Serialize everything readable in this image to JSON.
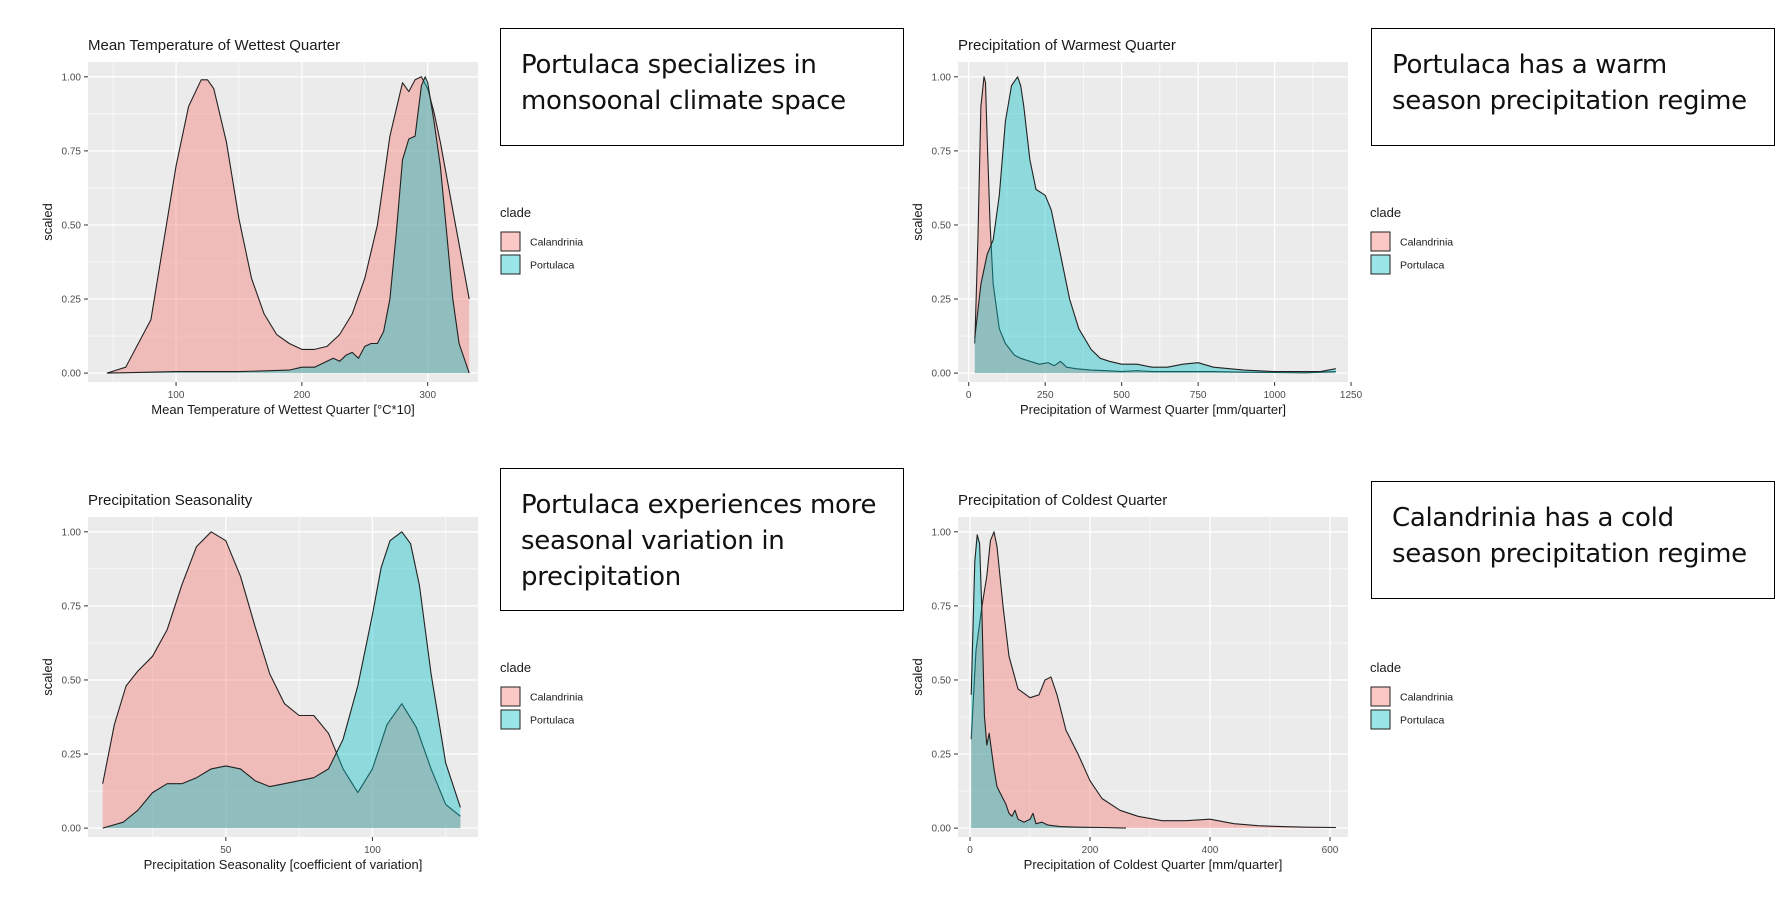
{
  "colors": {
    "calandrinia": "#f8766d",
    "portulaca": "#00bfc4",
    "panel_bg": "#ebebeb",
    "grid": "#ffffff"
  },
  "notes": [
    "Portulaca specializes in monsoonal climate space",
    "Portulaca has a warm season precipitation regime",
    "Portulaca experiences more seasonal variation in precipitation",
    "Calandrinia has a cold season precipitation regime"
  ],
  "chart_data": [
    {
      "type": "area",
      "title": "Mean Temperature of Wettest Quarter",
      "xlabel": "Mean Temperature of Wettest Quarter [°C*10]",
      "ylabel": "scaled",
      "xlim": [
        30,
        340
      ],
      "ylim": [
        -0.03,
        1.05
      ],
      "xticks": [
        100,
        200,
        300
      ],
      "yticks": [
        0,
        0.25,
        0.5,
        0.75,
        1.0
      ],
      "ytick_labels": [
        "0.00",
        "0.25",
        "0.50",
        "0.75",
        "1.00"
      ],
      "legend": {
        "title": "clade",
        "position": "right",
        "entries": [
          "Calandrinia",
          "Portulaca"
        ]
      },
      "series": [
        {
          "name": "Calandrinia",
          "x": [
            45,
            60,
            80,
            100,
            110,
            120,
            125,
            130,
            140,
            150,
            160,
            170,
            180,
            190,
            200,
            210,
            220,
            230,
            240,
            250,
            260,
            270,
            280,
            285,
            290,
            295,
            300,
            305,
            310,
            320,
            333
          ],
          "y": [
            0.0,
            0.02,
            0.18,
            0.7,
            0.9,
            0.99,
            0.99,
            0.96,
            0.78,
            0.52,
            0.32,
            0.2,
            0.13,
            0.1,
            0.08,
            0.08,
            0.09,
            0.13,
            0.2,
            0.32,
            0.5,
            0.8,
            0.98,
            0.95,
            0.99,
            1.0,
            0.96,
            0.88,
            0.78,
            0.55,
            0.25
          ]
        },
        {
          "name": "Portulaca",
          "x": [
            45,
            100,
            150,
            190,
            200,
            210,
            220,
            225,
            230,
            235,
            240,
            245,
            250,
            255,
            260,
            265,
            270,
            275,
            280,
            285,
            290,
            295,
            298,
            300,
            305,
            310,
            315,
            320,
            325,
            333
          ],
          "y": [
            0.0,
            0.005,
            0.005,
            0.01,
            0.02,
            0.02,
            0.04,
            0.05,
            0.04,
            0.06,
            0.07,
            0.05,
            0.09,
            0.1,
            0.1,
            0.14,
            0.25,
            0.47,
            0.72,
            0.79,
            0.8,
            0.97,
            1.0,
            0.98,
            0.85,
            0.7,
            0.48,
            0.25,
            0.1,
            0.0
          ]
        }
      ]
    },
    {
      "type": "area",
      "title": "Precipitation of Warmest Quarter",
      "xlabel": "Precipitation of Warmest Quarter [mm/quarter]",
      "ylabel": "scaled",
      "xlim": [
        -35,
        1240
      ],
      "ylim": [
        -0.03,
        1.05
      ],
      "xticks": [
        0,
        250,
        500,
        750,
        1000,
        1250
      ],
      "yticks": [
        0,
        0.25,
        0.5,
        0.75,
        1.0
      ],
      "ytick_labels": [
        "0.00",
        "0.25",
        "0.50",
        "0.75",
        "1.00"
      ],
      "legend": {
        "title": "clade",
        "position": "right",
        "entries": [
          "Calandrinia",
          "Portulaca"
        ]
      },
      "series": [
        {
          "name": "Calandrinia",
          "x": [
            20,
            30,
            40,
            50,
            55,
            60,
            70,
            80,
            100,
            120,
            150,
            170,
            200,
            230,
            260,
            280,
            300,
            320,
            350,
            400,
            450,
            500,
            550,
            600,
            650,
            700,
            750,
            800,
            900,
            1000,
            1100,
            1200
          ],
          "y": [
            0.1,
            0.45,
            0.9,
            1.0,
            0.98,
            0.8,
            0.5,
            0.3,
            0.15,
            0.1,
            0.06,
            0.05,
            0.04,
            0.03,
            0.035,
            0.025,
            0.04,
            0.02,
            0.015,
            0.01,
            0.008,
            0.005,
            0.008,
            0.005,
            0.005,
            0.005,
            0.005,
            0.005,
            0.003,
            0.002,
            0.001,
            0.005
          ]
        },
        {
          "name": "Portulaca",
          "x": [
            20,
            40,
            60,
            80,
            100,
            120,
            140,
            160,
            170,
            180,
            200,
            220,
            250,
            270,
            300,
            330,
            360,
            400,
            430,
            460,
            500,
            550,
            600,
            650,
            700,
            750,
            800,
            900,
            1000,
            1100,
            1150,
            1200
          ],
          "y": [
            0.12,
            0.3,
            0.4,
            0.45,
            0.6,
            0.85,
            0.97,
            1.0,
            0.97,
            0.9,
            0.72,
            0.62,
            0.6,
            0.55,
            0.4,
            0.25,
            0.15,
            0.08,
            0.05,
            0.04,
            0.03,
            0.03,
            0.02,
            0.02,
            0.03,
            0.035,
            0.02,
            0.01,
            0.005,
            0.005,
            0.005,
            0.015
          ]
        }
      ]
    },
    {
      "type": "area",
      "title": "Precipitation Seasonality",
      "xlabel": "Precipitation Seasonality [coefficient of variation]",
      "ylabel": "scaled",
      "xlim": [
        3,
        136
      ],
      "ylim": [
        -0.03,
        1.05
      ],
      "xticks": [
        50,
        100
      ],
      "yticks": [
        0,
        0.25,
        0.5,
        0.75,
        1.0
      ],
      "ytick_labels": [
        "0.00",
        "0.25",
        "0.50",
        "0.75",
        "1.00"
      ],
      "legend": {
        "title": "clade",
        "position": "right",
        "entries": [
          "Calandrinia",
          "Portulaca"
        ]
      },
      "series": [
        {
          "name": "Calandrinia",
          "x": [
            8,
            12,
            16,
            20,
            25,
            30,
            35,
            40,
            45,
            50,
            55,
            60,
            65,
            70,
            75,
            80,
            85,
            90,
            95,
            100,
            105,
            110,
            115,
            120,
            125,
            130
          ],
          "y": [
            0.15,
            0.35,
            0.48,
            0.53,
            0.58,
            0.67,
            0.82,
            0.95,
            1.0,
            0.97,
            0.85,
            0.68,
            0.52,
            0.42,
            0.38,
            0.38,
            0.32,
            0.2,
            0.12,
            0.2,
            0.35,
            0.42,
            0.34,
            0.2,
            0.08,
            0.04
          ]
        },
        {
          "name": "Portulaca",
          "x": [
            8,
            15,
            20,
            25,
            30,
            35,
            40,
            45,
            50,
            55,
            60,
            65,
            70,
            75,
            80,
            85,
            90,
            95,
            100,
            103,
            106,
            110,
            113,
            116,
            120,
            125,
            130
          ],
          "y": [
            0.0,
            0.02,
            0.06,
            0.12,
            0.15,
            0.15,
            0.17,
            0.2,
            0.21,
            0.2,
            0.16,
            0.14,
            0.15,
            0.16,
            0.17,
            0.2,
            0.3,
            0.48,
            0.72,
            0.88,
            0.97,
            1.0,
            0.96,
            0.82,
            0.52,
            0.22,
            0.07
          ]
        }
      ]
    },
    {
      "type": "area",
      "title": "Precipitation of Coldest Quarter",
      "xlabel": "Precipitation of Coldest Quarter [mm/quarter]",
      "ylabel": "scaled",
      "xlim": [
        -20,
        630
      ],
      "ylim": [
        -0.03,
        1.05
      ],
      "xticks": [
        0,
        200,
        400,
        600
      ],
      "yticks": [
        0,
        0.25,
        0.5,
        0.75,
        1.0
      ],
      "ytick_labels": [
        "0.00",
        "0.25",
        "0.50",
        "0.75",
        "1.00"
      ],
      "legend": {
        "title": "clade",
        "position": "right",
        "entries": [
          "Calandrinia",
          "Portulaca"
        ]
      },
      "series": [
        {
          "name": "Calandrinia",
          "x": [
            2,
            10,
            20,
            28,
            34,
            40,
            45,
            55,
            65,
            80,
            100,
            115,
            125,
            135,
            145,
            160,
            180,
            200,
            220,
            250,
            280,
            320,
            360,
            400,
            440,
            480,
            520,
            560,
            610
          ],
          "y": [
            0.3,
            0.6,
            0.75,
            0.85,
            0.97,
            1.0,
            0.95,
            0.75,
            0.58,
            0.47,
            0.44,
            0.45,
            0.5,
            0.51,
            0.45,
            0.33,
            0.25,
            0.16,
            0.1,
            0.06,
            0.04,
            0.025,
            0.025,
            0.03,
            0.015,
            0.008,
            0.005,
            0.003,
            0.002
          ]
        },
        {
          "name": "Portulaca",
          "x": [
            2,
            8,
            12,
            16,
            20,
            24,
            28,
            32,
            36,
            40,
            45,
            50,
            55,
            60,
            65,
            70,
            75,
            80,
            90,
            100,
            105,
            110,
            120,
            130,
            150,
            180,
            220,
            260
          ],
          "y": [
            0.45,
            0.9,
            0.99,
            0.96,
            0.72,
            0.38,
            0.28,
            0.32,
            0.26,
            0.2,
            0.14,
            0.12,
            0.1,
            0.08,
            0.05,
            0.04,
            0.06,
            0.03,
            0.02,
            0.03,
            0.05,
            0.015,
            0.02,
            0.01,
            0.005,
            0.003,
            0.002,
            0.0
          ]
        }
      ]
    }
  ]
}
